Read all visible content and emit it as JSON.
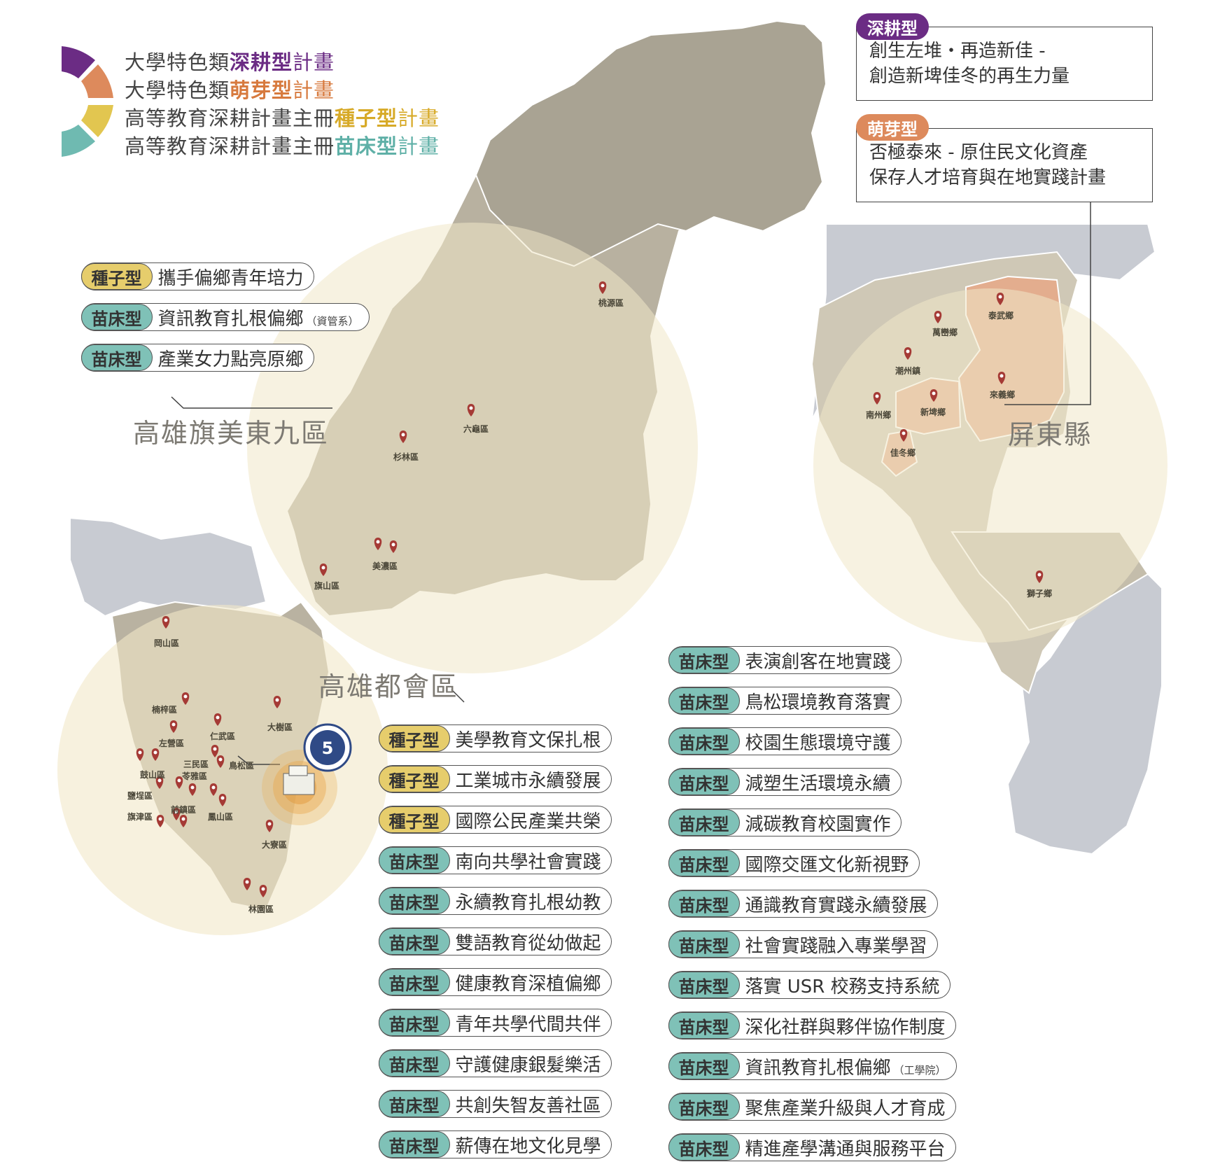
{
  "legend": {
    "lines": [
      {
        "prefix": "大學特色類",
        "highlight": "深耕型",
        "suffix": "計畫"
      },
      {
        "prefix": "大學特色類",
        "highlight": "萌芽型",
        "suffix": "計畫"
      },
      {
        "prefix": "高等教育深耕計畫主冊",
        "highlight": "種子型",
        "suffix": "計畫"
      },
      {
        "prefix": "高等教育深耕計畫主冊",
        "highlight": "苗床型",
        "suffix": "計畫"
      }
    ]
  },
  "colors": {
    "deep": "#6b2c84",
    "sprout": "#dd8a5c",
    "seed": "#e2c650",
    "bed": "#6fbab1",
    "circle": "#f1e8c8",
    "map_main": "#c4bdab",
    "map_gray": "#c8cbd2",
    "highlight_region": "#e3ad8e"
  },
  "regions": {
    "qimei": "高雄旗美東九區",
    "metro": "高雄都會區",
    "pingtung": "屏東縣"
  },
  "places": {
    "taoyuan": "桃源區",
    "liugui": "六龜區",
    "shanlin": "杉林區",
    "meinong": "美濃區",
    "qishan": "旗山區",
    "gangshan": "岡山區",
    "nanzi": "楠梓區",
    "renwu": "仁武區",
    "dashu": "大樹區",
    "zuoying": "左營區",
    "sanmin": "三民區",
    "gushan": "鼓山區",
    "lingya": "苓雅區",
    "niaosong": "鳥松區",
    "yancheng": "鹽埕區",
    "qianzhen": "前鎮區",
    "fengshan": "鳳山區",
    "qijin": "旗津區",
    "daliao": "大寮區",
    "linyuan": "林園區",
    "taiwu": "泰武鄉",
    "wanluan": "萬巒鄉",
    "chaozhou": "潮州鎮",
    "laiyi": "來義鄉",
    "nanzhou": "南州鄉",
    "xinpi": "新埤鄉",
    "jiadong": "佳冬鄉",
    "shizi": "獅子鄉"
  },
  "deep_box": {
    "tag": "深耕型",
    "line1": "創生左堆・再造新佳 -",
    "line2": "創造新埤佳冬的再生力量"
  },
  "sprout_box": {
    "tag": "萌芽型",
    "line1": "否極泰來 - 原住民文化資產",
    "line2": "保存人才培育與在地實踐計畫"
  },
  "qimei_projects": [
    {
      "tag": "種子型",
      "text": "攜手偏鄉青年培力",
      "note": ""
    },
    {
      "tag": "苗床型",
      "text": "資訊教育扎根偏鄉",
      "note": "（資管系）"
    },
    {
      "tag": "苗床型",
      "text": "產業女力點亮原鄉",
      "note": ""
    }
  ],
  "metro_projects_left": [
    {
      "tag": "種子型",
      "text": "美學教育文保扎根"
    },
    {
      "tag": "種子型",
      "text": "工業城市永續發展"
    },
    {
      "tag": "種子型",
      "text": "國際公民產業共榮"
    },
    {
      "tag": "苗床型",
      "text": "南向共學社會實踐"
    },
    {
      "tag": "苗床型",
      "text": "永續教育扎根幼教"
    },
    {
      "tag": "苗床型",
      "text": "雙語教育從幼做起"
    },
    {
      "tag": "苗床型",
      "text": "健康教育深植偏鄉"
    },
    {
      "tag": "苗床型",
      "text": "青年共學代間共伴"
    },
    {
      "tag": "苗床型",
      "text": "守護健康銀髮樂活"
    },
    {
      "tag": "苗床型",
      "text": "共創失智友善社區"
    },
    {
      "tag": "苗床型",
      "text": "薪傳在地文化見學"
    }
  ],
  "metro_projects_right": [
    {
      "tag": "苗床型",
      "text": "表演創客在地實踐",
      "note": ""
    },
    {
      "tag": "苗床型",
      "text": "鳥松環境教育落實",
      "note": ""
    },
    {
      "tag": "苗床型",
      "text": "校園生態環境守護",
      "note": ""
    },
    {
      "tag": "苗床型",
      "text": "減塑生活環境永續",
      "note": ""
    },
    {
      "tag": "苗床型",
      "text": "減碳教育校園實作",
      "note": ""
    },
    {
      "tag": "苗床型",
      "text": "國際交匯文化新視野",
      "note": ""
    },
    {
      "tag": "苗床型",
      "text": "通識教育實踐永續發展",
      "note": ""
    },
    {
      "tag": "苗床型",
      "text": "社會實踐融入專業學習",
      "note": ""
    },
    {
      "tag": "苗床型",
      "text": "落實 USR 校務支持系統",
      "note": ""
    },
    {
      "tag": "苗床型",
      "text": "深化社群與夥伴協作制度",
      "note": ""
    },
    {
      "tag": "苗床型",
      "text": "資訊教育扎根偏鄉",
      "note": "（工學院）"
    },
    {
      "tag": "苗床型",
      "text": "聚焦產業升級與人才育成",
      "note": ""
    },
    {
      "tag": "苗床型",
      "text": "精進產學溝通與服務平台",
      "note": ""
    }
  ]
}
